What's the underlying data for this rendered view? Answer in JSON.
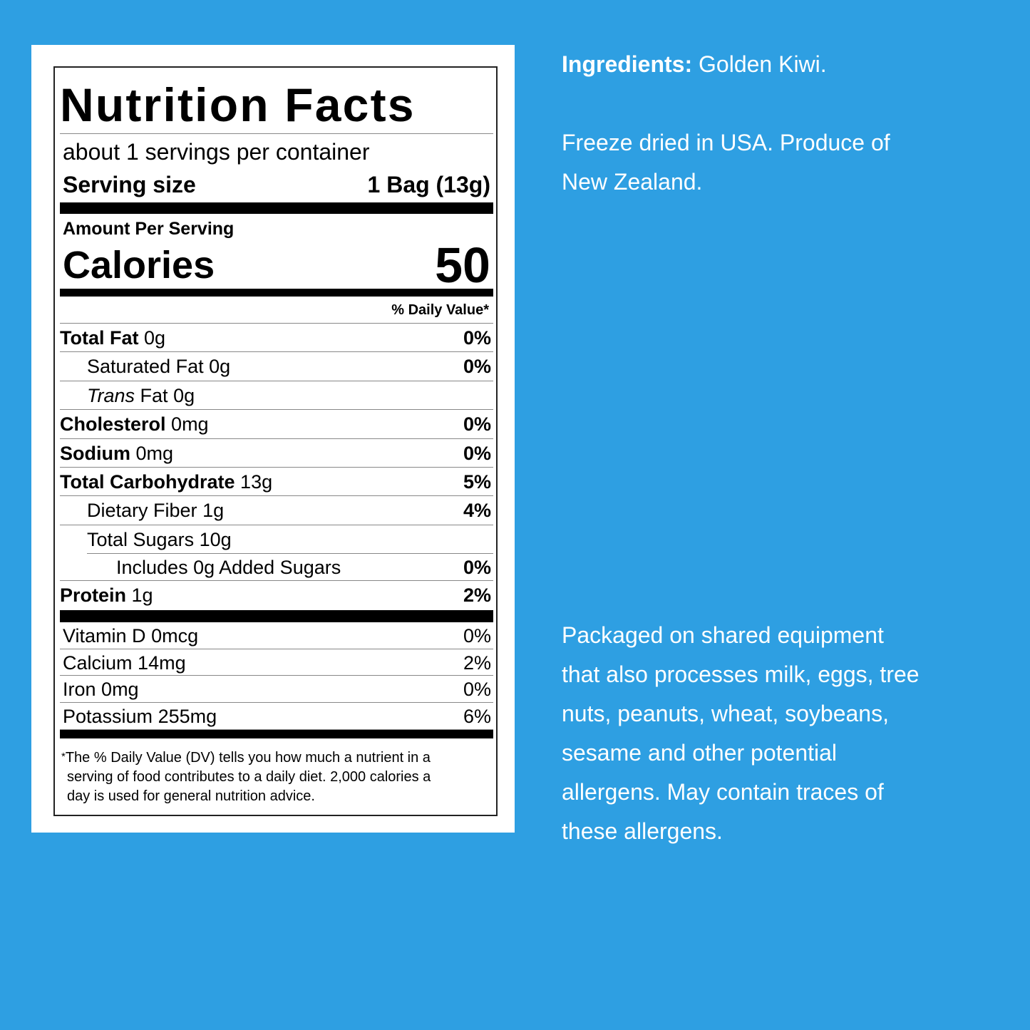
{
  "label": {
    "title": "Nutrition Facts",
    "servings": "about 1 servings per container",
    "serving_size": {
      "label": "Serving size",
      "value": "1 Bag (13g)"
    },
    "amount_per_serving": "Amount Per Serving",
    "calories": {
      "label": "Calories",
      "value": 50
    },
    "dv_header": "% Daily Value*",
    "nutrients": [
      {
        "name": "Total Fat",
        "amount": "0g",
        "dv": "0%"
      },
      {
        "name": "Saturated Fat",
        "amount": "0g",
        "dv": "0%"
      },
      {
        "name_italic": "Trans",
        "name": "Fat",
        "amount": "0g"
      },
      {
        "name": "Cholesterol",
        "amount": "0mg",
        "dv": "0%"
      },
      {
        "name": "Sodium",
        "amount": "0mg",
        "dv": "0%"
      },
      {
        "name": "Total Carbohydrate",
        "amount": "13g",
        "dv": "5%"
      },
      {
        "name": "Dietary Fiber",
        "amount": "1g",
        "dv": "4%"
      },
      {
        "name": "Total Sugars",
        "amount": "10g"
      },
      {
        "name": "Includes 0g Added Sugars",
        "dv": "0%"
      },
      {
        "name": "Protein",
        "amount": "1g",
        "dv": "2%"
      }
    ],
    "vitamins": [
      {
        "name": "Vitamin D",
        "amount": "0mcg",
        "dv": "0%"
      },
      {
        "name": "Calcium",
        "amount": "14mg",
        "dv": "2%"
      },
      {
        "name": "Iron",
        "amount": "0mg",
        "dv": "0%"
      },
      {
        "name": "Potassium",
        "amount": "255mg",
        "dv": "6%"
      }
    ],
    "footnote_mark": "*",
    "footnote": [
      "The % Daily Value (DV) tells you how much a nutrient in a",
      "serving of food contributes to a daily diet. 2,000 calories a",
      "day is used for general nutrition advice."
    ]
  },
  "info": {
    "ingredients_label": "Ingredients:",
    "ingredients": "Golden Kiwi.",
    "origin": [
      "Freeze dried in USA. Produce of",
      "New Zealand."
    ],
    "allergens": [
      "Packaged on shared equipment",
      "that also processes milk, eggs, tree",
      "nuts, peanuts, wheat, soybeans,",
      "sesame and other potential",
      "allergens. May contain traces of",
      "these allergens."
    ]
  }
}
